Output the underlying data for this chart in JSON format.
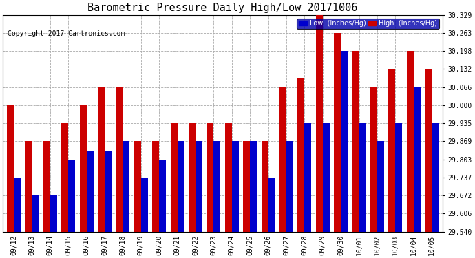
{
  "title": "Barometric Pressure Daily High/Low 20171006",
  "copyright": "Copyright 2017 Cartronics.com",
  "legend_low": "Low  (Inches/Hg)",
  "legend_high": "High  (Inches/Hg)",
  "dates": [
    "09/12",
    "09/13",
    "09/14",
    "09/15",
    "09/16",
    "09/17",
    "09/18",
    "09/19",
    "09/20",
    "09/21",
    "09/22",
    "09/23",
    "09/24",
    "09/25",
    "09/26",
    "09/27",
    "09/28",
    "09/29",
    "09/30",
    "10/01",
    "10/02",
    "10/03",
    "10/04",
    "10/05"
  ],
  "low": [
    29.737,
    29.672,
    29.672,
    29.803,
    29.835,
    29.835,
    29.869,
    29.737,
    29.803,
    29.869,
    29.869,
    29.869,
    29.869,
    29.869,
    29.737,
    29.869,
    29.935,
    29.935,
    30.198,
    29.935,
    29.869,
    29.935,
    30.066,
    29.935
  ],
  "high": [
    30.0,
    29.869,
    29.869,
    29.935,
    30.0,
    30.066,
    30.066,
    29.869,
    29.869,
    29.935,
    29.935,
    29.935,
    29.935,
    29.869,
    29.869,
    30.066,
    30.1,
    30.329,
    30.263,
    30.198,
    30.066,
    30.132,
    30.198,
    30.132
  ],
  "ylim": [
    29.54,
    30.329
  ],
  "yticks": [
    29.54,
    29.606,
    29.672,
    29.737,
    29.803,
    29.869,
    29.935,
    30.0,
    30.066,
    30.132,
    30.198,
    30.263,
    30.329
  ],
  "bar_width": 0.38,
  "low_color": "#0000CC",
  "high_color": "#CC0000",
  "bg_color": "#FFFFFF",
  "grid_color": "#AAAAAA",
  "title_fontsize": 11,
  "copyright_fontsize": 7,
  "tick_fontsize": 7
}
